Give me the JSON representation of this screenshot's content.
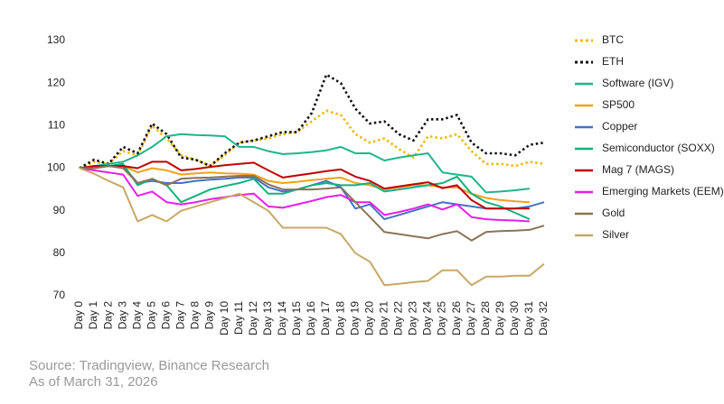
{
  "chart_data": {
    "type": "line",
    "categories": [
      "Day 0",
      "Day 1",
      "Day 2",
      "Day 3",
      "Day 4",
      "Day 5",
      "Day 6",
      "Day 7",
      "Day 8",
      "Day 9",
      "Day 10",
      "Day 11",
      "Day 12",
      "Day 13",
      "Day 14",
      "Day 15",
      "Day 16",
      "Day 17",
      "Day 18",
      "Day 19",
      "Day 20",
      "Day 21",
      "Day 22",
      "Day 23",
      "Day 24",
      "Day 25",
      "Day 26",
      "Day 27",
      "Day 28",
      "Day 29",
      "Day 30",
      "Day 31",
      "Day 32"
    ],
    "ylim": [
      70,
      130
    ],
    "yticks": [
      70,
      80,
      90,
      100,
      110,
      120,
      130
    ],
    "grid": false,
    "legend": "right",
    "series": [
      {
        "name": "BTC",
        "color": "#f0b90b",
        "dotted": true,
        "values": [
          100,
          101.5,
          101,
          104,
          103,
          110,
          107,
          103,
          102,
          100.5,
          103,
          106,
          106.5,
          107,
          108,
          108.5,
          111,
          113.5,
          112.5,
          108,
          106,
          107,
          104.5,
          102.5,
          107.5,
          107,
          108,
          104,
          101,
          101,
          100.5,
          101.5,
          101
        ]
      },
      {
        "name": "ETH",
        "color": "#111111",
        "dotted": true,
        "values": [
          100,
          102,
          101,
          105,
          103.5,
          110.5,
          108,
          102.5,
          102,
          100.5,
          103.5,
          106,
          106.5,
          107.5,
          108.5,
          108.5,
          113,
          122,
          120,
          114,
          110.5,
          111,
          108,
          106.5,
          111.5,
          111.5,
          112.5,
          106,
          103.5,
          103.5,
          103,
          105.5,
          106
        ]
      },
      {
        "name": "Software (IGV)",
        "color": "#1db58c",
        "dotted": false,
        "values": [
          100,
          100.5,
          101,
          101.5,
          103,
          105,
          107.5,
          108,
          107.8,
          107.7,
          107.5,
          105,
          105,
          104,
          103.3,
          103.5,
          103.8,
          104.2,
          105,
          103.5,
          103.5,
          101.8,
          102.5,
          103,
          103.5,
          99,
          98.5,
          98,
          94.3,
          94.5,
          94.8,
          95.2,
          null
        ]
      },
      {
        "name": "SP500",
        "color": "#f5a01a",
        "dotted": false,
        "values": [
          100,
          100.3,
          100.5,
          100.5,
          99,
          100,
          99.5,
          98.5,
          98.8,
          99,
          98.8,
          98.7,
          98.5,
          97,
          96.5,
          96.8,
          97.2,
          97.5,
          97.8,
          96.5,
          96,
          95,
          95.5,
          96,
          96,
          95.5,
          95.5,
          94,
          93,
          92.5,
          92.2,
          92,
          null
        ]
      },
      {
        "name": "Copper",
        "color": "#4472c4",
        "dotted": false,
        "values": [
          100,
          100,
          100.5,
          100.5,
          96.5,
          97,
          96.5,
          96.5,
          97,
          97.3,
          97.5,
          97.8,
          97.8,
          95.5,
          94.5,
          95,
          96,
          97,
          95.5,
          90.5,
          91.5,
          88,
          89,
          90,
          91,
          92,
          91.5,
          91,
          90.5,
          90.5,
          90.5,
          91,
          92
        ]
      },
      {
        "name": "Semiconductor (SOXX)",
        "color": "#12b27c",
        "dotted": false,
        "values": [
          100,
          100.5,
          100.5,
          101,
          96,
          97.5,
          96,
          92,
          93.5,
          95,
          95.8,
          96.5,
          97.5,
          94,
          94,
          95,
          96,
          96.5,
          96,
          96,
          96.5,
          94.5,
          95,
          95.5,
          96,
          96.5,
          98,
          94,
          92,
          91,
          89.5,
          88,
          null
        ]
      },
      {
        "name": "Mag 7 (MAGS)",
        "color": "#c00000",
        "dotted": false,
        "values": [
          100,
          100.5,
          100.5,
          100.5,
          100,
          101.5,
          101.5,
          99.5,
          99.8,
          100.3,
          100.7,
          101,
          101.3,
          99.5,
          97.8,
          98.3,
          98.8,
          99.3,
          99.7,
          98,
          97,
          95.2,
          95.7,
          96.2,
          96.7,
          95.3,
          96,
          92.5,
          90.5,
          90.5,
          90.5,
          90.5,
          null
        ]
      },
      {
        "name": "Emerging Markets (EEM)",
        "color": "#e81ee8",
        "dotted": false,
        "values": [
          100,
          99.5,
          99,
          98.5,
          93.5,
          94.5,
          92,
          91.5,
          92,
          92.7,
          93.2,
          93.7,
          94,
          91,
          90.7,
          91.5,
          92.3,
          93.2,
          93.7,
          92,
          92,
          89,
          89.7,
          90.5,
          91.5,
          90.3,
          91.5,
          88.5,
          88,
          87.8,
          87.7,
          87.5,
          null
        ]
      },
      {
        "name": "Gold",
        "color": "#8b7355",
        "dotted": false,
        "values": [
          100,
          100,
          100.5,
          100,
          96.5,
          97.5,
          96,
          97.5,
          97.7,
          97.8,
          98,
          98.2,
          98.2,
          96.2,
          95,
          95,
          95,
          95.2,
          95.5,
          92,
          88.5,
          85,
          84.5,
          84,
          83.5,
          84.5,
          85.2,
          83,
          85,
          85.2,
          85.3,
          85.5,
          86.5
        ]
      },
      {
        "name": "Silver",
        "color": "#c8a865",
        "dotted": false,
        "values": [
          100,
          98.7,
          97,
          95.5,
          87.5,
          89,
          87.5,
          90,
          91,
          92,
          93,
          94,
          92,
          90,
          86,
          86,
          86,
          86,
          84.5,
          80,
          78,
          72.5,
          72.8,
          73.2,
          73.5,
          76,
          76,
          72.5,
          74.5,
          74.5,
          74.7,
          74.7,
          77.5
        ]
      }
    ]
  },
  "source": "Source: Tradingview, Binance Research",
  "as_of": "As of March 31, 2026"
}
